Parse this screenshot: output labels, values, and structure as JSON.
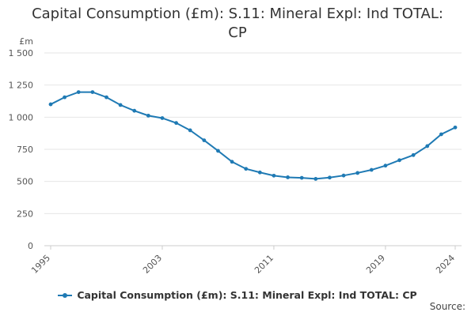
{
  "colors": {
    "series": "#1f7ab4",
    "grid": "#e6e6e6",
    "text": "#333333"
  },
  "title_lines": [
    "Capital Consumption (£m): S.11: Mineral Expl: Ind TOTAL:",
    "CP"
  ],
  "source_label": "Source:",
  "chart_data": {
    "type": "line",
    "title": "Capital Consumption (£m): S.11: Mineral Expl: Ind TOTAL: CP",
    "ylabel": "£m",
    "xlabel": "",
    "ylim": [
      0,
      1500
    ],
    "yticks": [
      0,
      250,
      500,
      750,
      1000,
      1250,
      1500
    ],
    "ytick_labels": [
      "0",
      "250",
      "500",
      "750",
      "1 000",
      "1 250",
      "1 500"
    ],
    "xlim": [
      1995,
      2024
    ],
    "xticks": [
      1995,
      2003,
      2011,
      2019,
      2024
    ],
    "xtick_labels": [
      "1995",
      "2003",
      "2011",
      "2019",
      "2024"
    ],
    "grid": true,
    "legend": "bottom-center",
    "x": [
      1995,
      1996,
      1997,
      1998,
      1999,
      2000,
      2001,
      2002,
      2003,
      2004,
      2005,
      2006,
      2007,
      2008,
      2009,
      2010,
      2011,
      2012,
      2013,
      2014,
      2015,
      2016,
      2017,
      2018,
      2019,
      2020,
      2021,
      2022,
      2023,
      2024
    ],
    "series": [
      {
        "name": "Capital Consumption (£m): S.11: Mineral Expl: Ind TOTAL: CP",
        "values": [
          1100,
          1155,
          1195,
          1195,
          1155,
          1095,
          1050,
          1012,
          993,
          955,
          898,
          820,
          738,
          653,
          598,
          570,
          545,
          532,
          528,
          520,
          530,
          546,
          566,
          590,
          623,
          665,
          705,
          775,
          867,
          920
        ]
      }
    ]
  }
}
